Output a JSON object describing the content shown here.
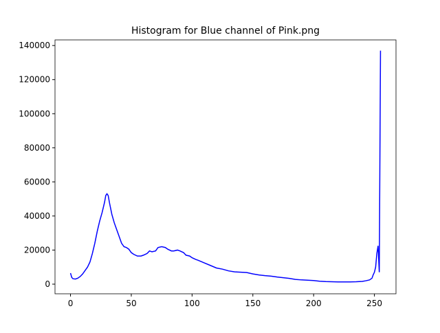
{
  "chart_data": {
    "type": "line",
    "title": "Histogram for Blue channel of Pink.png",
    "x": [
      0,
      1,
      2,
      4,
      6,
      8,
      10,
      12,
      14,
      16,
      18,
      20,
      22,
      24,
      26,
      28,
      29,
      30,
      31,
      32,
      34,
      36,
      38,
      40,
      42,
      44,
      46,
      48,
      50,
      52,
      55,
      58,
      60,
      63,
      65,
      67,
      70,
      72,
      75,
      78,
      80,
      83,
      85,
      88,
      90,
      93,
      95,
      98,
      100,
      103,
      105,
      110,
      115,
      120,
      125,
      130,
      135,
      140,
      145,
      150,
      155,
      160,
      165,
      170,
      175,
      180,
      185,
      190,
      195,
      200,
      205,
      210,
      215,
      220,
      225,
      230,
      235,
      240,
      243,
      246,
      248,
      249,
      250,
      251,
      252,
      253,
      254,
      255
    ],
    "series": [
      {
        "color": "#0000ff",
        "values": [
          6500,
          4000,
          3200,
          3000,
          3500,
          4500,
          6000,
          8000,
          10000,
          13000,
          18000,
          24000,
          31000,
          37000,
          42000,
          48000,
          52000,
          53000,
          52000,
          48000,
          41000,
          36000,
          32000,
          28000,
          24000,
          22000,
          21500,
          20500,
          18500,
          17500,
          16500,
          16500,
          17000,
          18000,
          19500,
          19000,
          19500,
          21500,
          22000,
          21500,
          20500,
          19500,
          19500,
          20000,
          19500,
          18500,
          17000,
          16500,
          15500,
          14500,
          14000,
          12500,
          11000,
          9500,
          8800,
          7800,
          7200,
          7000,
          6800,
          6000,
          5400,
          5000,
          4700,
          4200,
          3800,
          3400,
          2800,
          2500,
          2300,
          2100,
          1700,
          1500,
          1400,
          1300,
          1300,
          1300,
          1400,
          1600,
          2000,
          2500,
          3500,
          5500,
          7000,
          10000,
          18000,
          22500,
          7000,
          137000
        ]
      }
    ],
    "xlim": [
      -12.75,
      267.75
    ],
    "ylim": [
      -5650,
      143300
    ],
    "xticks": [
      0,
      50,
      100,
      150,
      200,
      250
    ],
    "yticks": [
      0,
      20000,
      40000,
      60000,
      80000,
      100000,
      120000,
      140000
    ]
  }
}
